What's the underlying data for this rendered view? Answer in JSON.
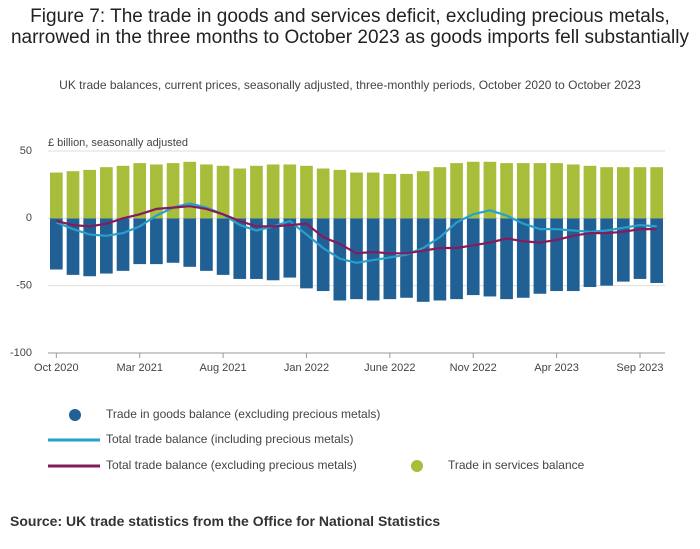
{
  "chart_data": {
    "type": "bar",
    "title": "Figure 7: The trade in goods and services deficit, excluding precious metals, narrowed in the three months to October 2023 as goods imports fell substantially",
    "subtitle": "UK trade balances, current prices, seasonally adjusted, three-monthly periods, October 2020 to October 2023",
    "y_label": "£ billion, seasonally adjusted",
    "source": "Source: UK trade statistics from the Office for National Statistics",
    "categories": [
      "Oct 2020",
      null,
      null,
      null,
      null,
      "Mar 2021",
      null,
      null,
      null,
      null,
      "Aug 2021",
      null,
      null,
      null,
      null,
      "Jan 2022",
      null,
      null,
      null,
      null,
      "June 2022",
      null,
      null,
      null,
      null,
      "Nov 2022",
      null,
      null,
      null,
      null,
      "Apr 2023",
      null,
      null,
      null,
      null,
      "Sep 2023",
      null
    ],
    "series": [
      {
        "name": "Trade in goods balance (excluding precious metals)",
        "type": "bar",
        "color": "#206095",
        "values": [
          -38,
          -42,
          -43,
          -41,
          -39,
          -34,
          -34,
          -33,
          -36,
          -39,
          -42,
          -45,
          -45,
          -46,
          -44,
          -52,
          -54,
          -61,
          -60,
          -61,
          -60,
          -59,
          -62,
          -61,
          -60,
          -57,
          -58,
          -60,
          -59,
          -56,
          -54,
          -54,
          -51,
          -50,
          -47,
          -45,
          -48
        ]
      },
      {
        "name": "Total trade balance (including precious metals)",
        "type": "line",
        "color": "#27a0cc",
        "values": [
          -3,
          -8,
          -12,
          -13,
          -11,
          -6,
          2,
          8,
          11,
          8,
          3,
          -5,
          -9,
          -6,
          -2,
          -12,
          -22,
          -30,
          -33,
          -31,
          -29,
          -27,
          -22,
          -14,
          -3,
          3,
          6,
          2,
          -4,
          -8,
          -8,
          -9,
          -10,
          -9,
          -7,
          -5,
          -6
        ]
      },
      {
        "name": "Total trade balance (excluding precious metals)",
        "type": "line",
        "color": "#871a5b",
        "values": [
          -2,
          -5,
          -6,
          -4,
          0,
          3,
          7,
          8,
          9,
          7,
          3,
          -2,
          -6,
          -6,
          -5,
          -4,
          -14,
          -19,
          -26,
          -25,
          -26,
          -26,
          -24,
          -22,
          -22,
          -20,
          -18,
          -15,
          -17,
          -18,
          -16,
          -13,
          -11,
          -11,
          -10,
          -8,
          -8
        ]
      },
      {
        "name": "Trade in services balance",
        "type": "bar",
        "color": "#a8bd3a",
        "values": [
          34,
          35,
          36,
          38,
          39,
          41,
          40,
          41,
          42,
          40,
          39,
          37,
          39,
          40,
          40,
          39,
          37,
          36,
          34,
          34,
          33,
          33,
          35,
          38,
          41,
          42,
          42,
          41,
          41,
          41,
          41,
          40,
          39,
          38,
          38,
          38,
          38
        ]
      }
    ],
    "ylim": [
      -100,
      50
    ],
    "yticks": [
      -100,
      -50,
      0,
      50
    ],
    "grid": true
  }
}
